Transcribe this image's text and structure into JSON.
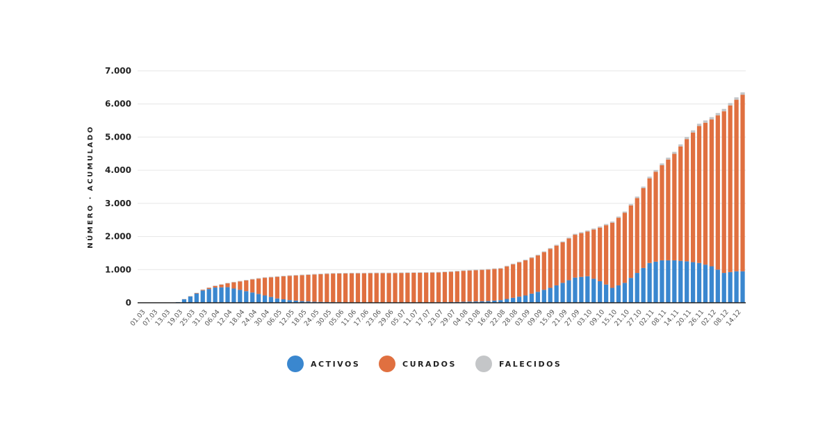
{
  "chart_data": {
    "type": "stacked-bar",
    "y_label": "NÚMERO · ACUMULADO",
    "categories": [
      "01.03",
      null,
      "07.03",
      null,
      "13.03",
      null,
      "19.03",
      null,
      "25.03",
      null,
      "31.03",
      null,
      "06.04",
      null,
      "12.04",
      null,
      "18.04",
      null,
      "24.04",
      null,
      "30.04",
      null,
      "06.05",
      null,
      "12.05",
      null,
      "18.05",
      null,
      "24.05",
      null,
      "30.05",
      null,
      "05.06",
      null,
      "11.06",
      null,
      "17.06",
      null,
      "23.06",
      null,
      "29.06",
      null,
      "05.07",
      null,
      "11.07",
      null,
      "17.07",
      null,
      "23.07",
      null,
      "29.07",
      null,
      "04.08",
      null,
      "10.08",
      null,
      "16.08",
      null,
      "22.08",
      null,
      "28.08",
      null,
      "03.09",
      null,
      "09.09",
      null,
      "15.09",
      null,
      "21.09",
      null,
      "27.09",
      null,
      "03.10",
      null,
      "09.10",
      null,
      "15.10",
      null,
      "21.10",
      null,
      "27.10",
      null,
      "02.11",
      null,
      "08.11",
      null,
      "14.11",
      null,
      "20.11",
      null,
      "26.11",
      null,
      "02.12",
      null,
      "08.12",
      null,
      "14.12",
      null
    ],
    "series": [
      {
        "name": "ACTIVOS",
        "color": "#3a87cf",
        "values": [
          0,
          0,
          0,
          0,
          0,
          10,
          20,
          105,
          190,
          280,
          370,
          415,
          460,
          465,
          470,
          430,
          390,
          350,
          310,
          265,
          220,
          175,
          130,
          105,
          80,
          65,
          50,
          40,
          30,
          25,
          20,
          18,
          15,
          12,
          10,
          10,
          10,
          10,
          10,
          10,
          10,
          10,
          10,
          10,
          10,
          10,
          10,
          12,
          15,
          18,
          20,
          25,
          30,
          35,
          40,
          45,
          50,
          65,
          80,
          115,
          150,
          185,
          220,
          275,
          330,
          390,
          450,
          525,
          600,
          680,
          760,
          780,
          800,
          725,
          650,
          550,
          450,
          525,
          600,
          750,
          900,
          1050,
          1200,
          1240,
          1280,
          1280,
          1280,
          1265,
          1250,
          1225,
          1200,
          1150,
          1100,
          1000,
          900,
          925,
          950,
          950
        ]
      },
      {
        "name": "CURADOS",
        "color": "#e07040",
        "values": [
          0,
          0,
          0,
          0,
          0,
          0,
          0,
          4,
          7,
          15,
          22,
          35,
          48,
          82,
          116,
          186,
          255,
          325,
          394,
          464,
          533,
          593,
          653,
          693,
          733,
          758,
          783,
          803,
          823,
          838,
          853,
          861,
          868,
          873,
          878,
          878,
          878,
          880,
          883,
          883,
          883,
          885,
          888,
          890,
          893,
          896,
          898,
          898,
          898,
          905,
          912,
          922,
          932,
          937,
          942,
          947,
          952,
          952,
          952,
          982,
          1011,
          1036,
          1060,
          1079,
          1098,
          1137,
          1176,
          1200,
          1224,
          1258,
          1292,
          1321,
          1350,
          1484,
          1618,
          1792,
          1966,
          2040,
          2114,
          2187,
          2260,
          2408,
          2555,
          2713,
          2870,
          3043,
          3215,
          3453,
          3690,
          3913,
          4136,
          4284,
          4432,
          4656,
          4880,
          5029,
          5178,
          5327
        ]
      },
      {
        "name": "FALECIDOS",
        "color": "#c4c6c8",
        "values": [
          0,
          0,
          0,
          0,
          0,
          0,
          0,
          2,
          3,
          6,
          8,
          10,
          12,
          13,
          14,
          15,
          15,
          16,
          16,
          17,
          17,
          17,
          17,
          17,
          17,
          17,
          17,
          17,
          17,
          17,
          17,
          17,
          17,
          17,
          17,
          17,
          17,
          17,
          17,
          17,
          17,
          17,
          17,
          17,
          17,
          17,
          17,
          17,
          17,
          18,
          18,
          18,
          18,
          18,
          18,
          18,
          18,
          19,
          19,
          20,
          20,
          21,
          22,
          23,
          24,
          25,
          26,
          27,
          28,
          29,
          30,
          31,
          32,
          33,
          34,
          35,
          36,
          38,
          40,
          43,
          45,
          48,
          50,
          53,
          55,
          58,
          60,
          62,
          64,
          66,
          68,
          69,
          70,
          71,
          72,
          73,
          72,
          73
        ]
      }
    ],
    "ylim": [
      0,
      7000
    ],
    "yticks": [
      0,
      {
        "value": 1000,
        "label": "1.000"
      },
      {
        "value": 2000,
        "label": "2.000"
      },
      {
        "value": 3000,
        "label": "3.000"
      },
      {
        "value": 4000,
        "label": "4.000"
      },
      {
        "value": 5000,
        "label": "5.000"
      },
      {
        "value": 6000,
        "label": "6.000"
      },
      {
        "value": 7000,
        "label": "7.000"
      }
    ],
    "grid": true
  }
}
